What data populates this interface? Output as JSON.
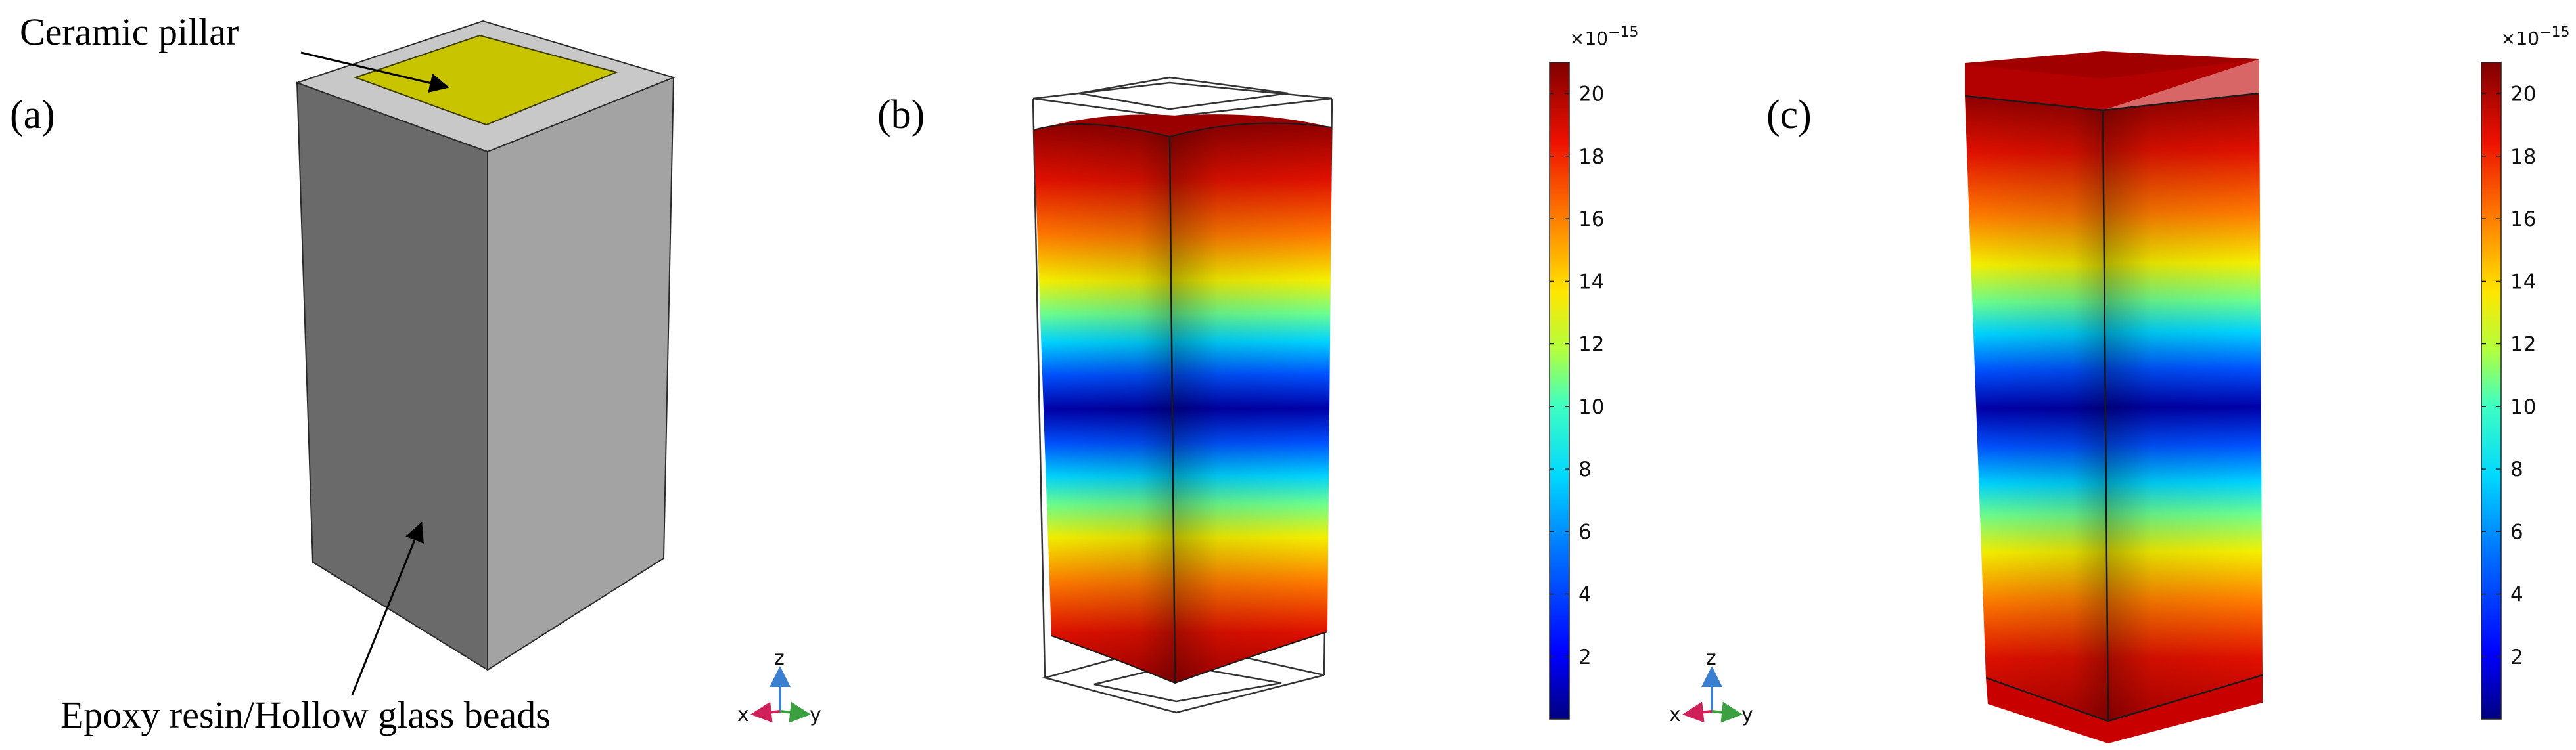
{
  "panels": [
    {
      "id": "a",
      "label": "(a)"
    },
    {
      "id": "b",
      "label": "(b)"
    },
    {
      "id": "c",
      "label": "(c)"
    }
  ],
  "annotations": {
    "pillar": "Ceramic pillar",
    "matrix": "Epoxy resin/Hollow glass beads"
  },
  "axis_triad": {
    "z": "z",
    "x": "x",
    "y": "y"
  },
  "colorbar": {
    "multiplier": "×10",
    "exponent": "−15",
    "min": 0,
    "max": 21,
    "ticks": [
      "2",
      "4",
      "6",
      "8",
      "10",
      "12",
      "14",
      "16",
      "18",
      "20"
    ],
    "colormap": "rainbow",
    "stops": [
      "#00007f",
      "#0000ff",
      "#0090ff",
      "#00e5ff",
      "#5eff9f",
      "#d7ff28",
      "#ffd000",
      "#ff5a00",
      "#e00000",
      "#7f0000"
    ]
  },
  "colors": {
    "pillar_top": "#c9c400",
    "matrix_light": "#a3a3a3",
    "matrix_dark": "#6a6a6a",
    "matrix_top": "#c8c8c8"
  }
}
